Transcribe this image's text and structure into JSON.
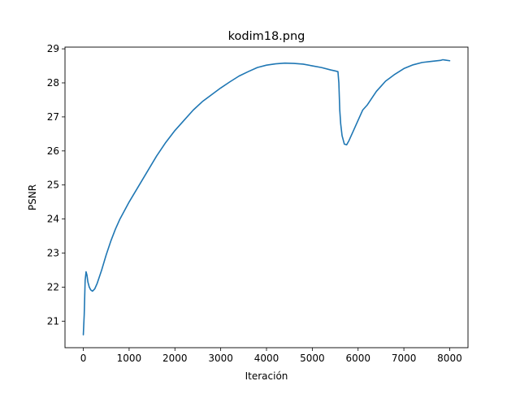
{
  "chart_data": {
    "type": "line",
    "title": "kodim18.png",
    "xlabel": "Iteración",
    "ylabel": "PSNR",
    "xlim": [
      -400,
      8400
    ],
    "ylim": [
      20.22,
      29.05
    ],
    "xticks": [
      0,
      1000,
      2000,
      3000,
      4000,
      5000,
      6000,
      7000,
      8000
    ],
    "yticks": [
      21,
      22,
      23,
      24,
      25,
      26,
      27,
      28,
      29
    ],
    "grid": false,
    "line_color": "#1f77b4",
    "series": [
      {
        "x": [
          0,
          20,
          40,
          60,
          80,
          100,
          130,
          160,
          200,
          250,
          300,
          400,
          500,
          600,
          700,
          800,
          1000,
          1200,
          1400,
          1600,
          1800,
          2000,
          2200,
          2400,
          2600,
          2800,
          3000,
          3200,
          3400,
          3600,
          3800,
          4000,
          4200,
          4400,
          4600,
          4800,
          5000,
          5200,
          5400,
          5500,
          5560,
          5580,
          5600,
          5620,
          5650,
          5700,
          5750,
          5800,
          5900,
          6000,
          6100,
          6200,
          6300,
          6400,
          6500,
          6600,
          6700,
          6800,
          7000,
          7200,
          7400,
          7600,
          7800,
          7850,
          7900,
          8000
        ],
        "y": [
          20.6,
          21.2,
          22.2,
          22.45,
          22.35,
          22.15,
          22.0,
          21.92,
          21.88,
          21.95,
          22.1,
          22.5,
          22.95,
          23.35,
          23.7,
          24.0,
          24.5,
          24.95,
          25.4,
          25.85,
          26.25,
          26.6,
          26.9,
          27.2,
          27.45,
          27.65,
          27.85,
          28.03,
          28.2,
          28.33,
          28.45,
          28.52,
          28.56,
          28.58,
          28.57,
          28.55,
          28.5,
          28.45,
          28.38,
          28.35,
          28.33,
          28.0,
          27.2,
          26.8,
          26.45,
          26.2,
          26.18,
          26.3,
          26.6,
          26.9,
          27.2,
          27.35,
          27.55,
          27.75,
          27.9,
          28.05,
          28.15,
          28.25,
          28.42,
          28.53,
          28.6,
          28.63,
          28.66,
          28.68,
          28.67,
          28.65
        ]
      }
    ]
  }
}
